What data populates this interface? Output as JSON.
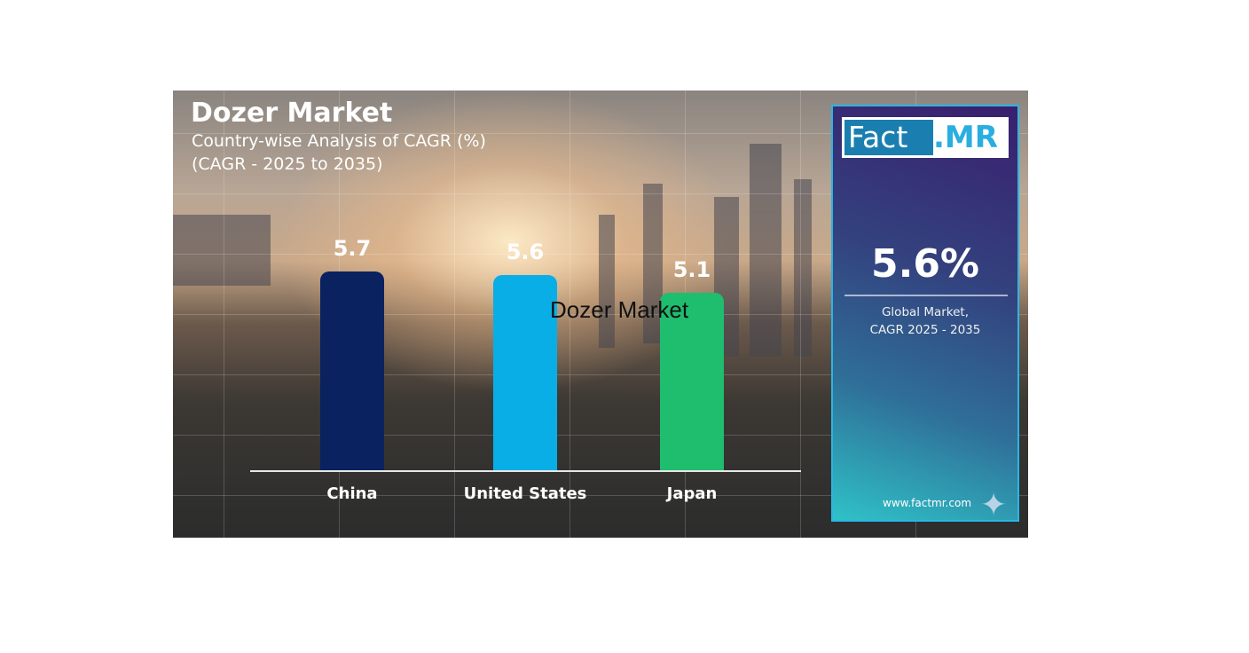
{
  "chart_data": {
    "type": "bar",
    "title": "Dozer Market",
    "subtitle": [
      "Country-wise Analysis of CAGR (%)",
      "(CAGR - 2025 to 2035)"
    ],
    "categories": [
      "China",
      "United States",
      "Japan"
    ],
    "values": [
      5.7,
      5.6,
      5.1
    ],
    "value_labels": [
      "5.7",
      "5.6",
      "5.1"
    ],
    "colors": [
      "#0a2260",
      "#0aaee6",
      "#1fbd6e"
    ],
    "xlabel": "",
    "ylabel": "",
    "grid": false
  },
  "panel": {
    "logo_left": "Fact",
    "logo_right": ".MR",
    "value": "5.6%",
    "label_line1": "Global Market,",
    "label_line2": "CAGR 2025 - 2035",
    "url": "www.factmr.com"
  },
  "overlay_text": "Dozer Market"
}
